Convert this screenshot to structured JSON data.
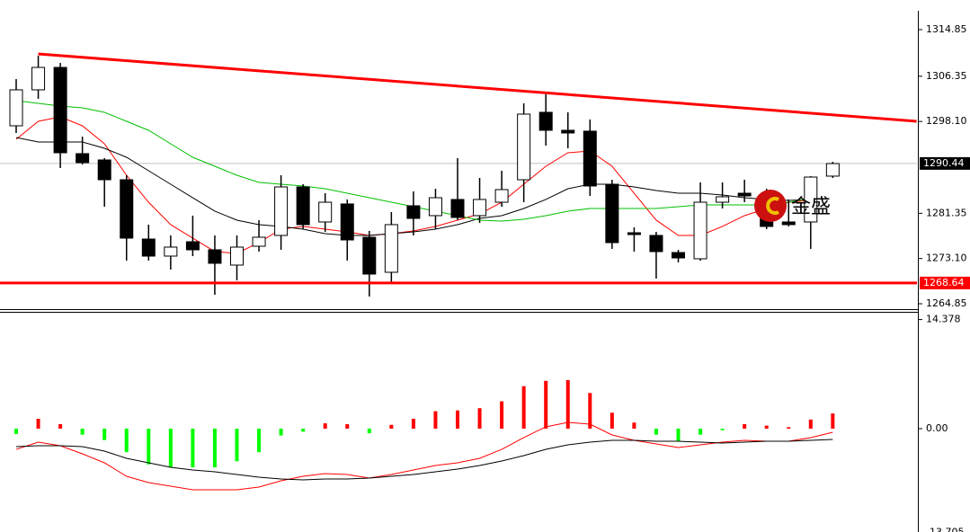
{
  "chart_data": [
    {
      "type": "candlestick",
      "open": [
        1297.31,
        1303.87,
        1307.96,
        1292.23,
        1291.08,
        1287.47,
        1276.65,
        1273.54,
        1276.16,
        1274.69,
        1271.9,
        1275.34,
        1277.31,
        1286.16,
        1279.77,
        1283.05,
        1276.98,
        1270.59,
        1282.72,
        1280.92,
        1283.87,
        1280.92,
        1283.37,
        1287.47,
        1299.77,
        1296.49,
        1296.33,
        1286.65,
        1277.8,
        1277.31,
        1274.19,
        1273.05,
        1283.37,
        1285.01,
        1283.37,
        1279.77,
        1279.77,
        1288.13
      ],
      "high": [
        1305.83,
        1310.1,
        1308.78,
        1295.34,
        1291.41,
        1288.29,
        1279.28,
        1277.31,
        1280.92,
        1277.31,
        1277.31,
        1280.1,
        1288.29,
        1286.65,
        1285.01,
        1283.87,
        1278.13,
        1281.57,
        1285.34,
        1285.83,
        1291.41,
        1287.8,
        1289.11,
        1301.41,
        1303.05,
        1299.77,
        1298.46,
        1287.47,
        1278.78,
        1277.96,
        1274.69,
        1286.98,
        1286.98,
        1287.47,
        1285.83,
        1283.87,
        1288.13,
        1290.75
      ],
      "low": [
        1296.0,
        1302.23,
        1289.6,
        1290.26,
        1282.55,
        1272.72,
        1272.72,
        1271.08,
        1273.54,
        1266.49,
        1269.11,
        1274.36,
        1274.69,
        1278.46,
        1277.96,
        1272.72,
        1266.16,
        1268.78,
        1277.31,
        1278.46,
        1280.1,
        1279.6,
        1282.55,
        1283.37,
        1293.7,
        1293.21,
        1284.52,
        1274.85,
        1274.36,
        1269.44,
        1272.39,
        1272.72,
        1282.23,
        1283.37,
        1278.46,
        1278.95,
        1274.85,
        1287.8
      ],
      "close": [
        1303.87,
        1307.96,
        1292.39,
        1290.59,
        1287.47,
        1276.82,
        1273.54,
        1275.18,
        1274.69,
        1272.23,
        1275.18,
        1276.98,
        1286.16,
        1279.28,
        1283.37,
        1276.49,
        1270.26,
        1279.28,
        1280.42,
        1284.19,
        1280.59,
        1283.87,
        1285.67,
        1299.44,
        1296.49,
        1296.0,
        1286.33,
        1276.0,
        1277.47,
        1274.36,
        1273.21,
        1283.37,
        1284.36,
        1284.52,
        1278.95,
        1279.28,
        1287.96,
        1290.42
      ],
      "up_color": "#ffffff",
      "down_color": "#000000",
      "ylim": [
        1264.03,
        1318.29
      ],
      "yticks": [
        1314.85,
        1306.35,
        {
          "value": 1298.1,
          "label": "1298.10"
        },
        1281.35,
        {
          "value": 1273.1,
          "label": "1273.10"
        },
        1264.85
      ],
      "series": [
        {
          "color": "#ff0000",
          "values": [
            1294.85,
            1298.13,
            1298.95,
            1297.31,
            1294.03,
            1288.29,
            1283.37,
            1279.28,
            1276.82,
            1274.36,
            1274.03,
            1276.0,
            1278.46,
            1278.95,
            1278.46,
            1277.96,
            1277.31,
            1277.64,
            1278.13,
            1278.95,
            1280.1,
            1281.24,
            1283.37,
            1286.65,
            1289.93,
            1292.39,
            1292.72,
            1289.93,
            1285.01,
            1280.1,
            1277.31,
            1277.31,
            1278.95,
            1280.92,
            1282.23,
            1283.37,
            1283.7,
            null
          ]
        },
        {
          "color": "#000000",
          "values": [
            1295.18,
            1294.36,
            1294.36,
            1294.36,
            1293.21,
            1291.57,
            1289.11,
            1286.65,
            1284.19,
            1281.74,
            1280.1,
            1279.28,
            1278.95,
            1278.46,
            1277.64,
            1277.31,
            1277.31,
            1277.64,
            1277.96,
            1278.46,
            1279.28,
            1280.42,
            1280.92,
            1282.23,
            1283.87,
            1285.83,
            1286.65,
            1286.65,
            1286.16,
            1285.51,
            1285.01,
            1285.01,
            1284.69,
            1284.19,
            1283.87,
            1283.7,
            1283.87,
            null
          ]
        },
        {
          "color": "#00c000",
          "values": [
            1301.9,
            1301.41,
            1300.92,
            1300.59,
            1299.77,
            1298.13,
            1296.49,
            1294.03,
            1291.57,
            1289.93,
            1288.29,
            1286.98,
            1286.65,
            1286.33,
            1285.83,
            1285.01,
            1284.19,
            1283.37,
            1282.55,
            1281.74,
            1280.92,
            1280.1,
            1279.93,
            1280.26,
            1280.92,
            1281.74,
            1282.23,
            1282.23,
            1282.23,
            1282.23,
            1282.55,
            1282.88,
            1282.88,
            1282.88,
            1282.88,
            1283.37,
            1284.03,
            null
          ]
        }
      ],
      "trendlines": [
        {
          "color": "#ff0000",
          "x": [
            1,
            40.8
          ],
          "y": [
            1310.42,
            1298.13
          ]
        }
      ],
      "hlines": [
        {
          "value": 1290.44,
          "color": "#c0c0c0",
          "label_color": "#000000"
        },
        {
          "value": 1268.64,
          "color": "#ff0000",
          "label_color": "#ff0000"
        }
      ],
      "watermark": "金盛"
    },
    {
      "type": "macd",
      "values": [
        -0.7,
        1.3,
        0.6,
        -0.8,
        -1.5,
        -3.1,
        -4.7,
        -5.1,
        -5.1,
        -5.1,
        -4.3,
        -3.1,
        -0.9,
        -0.4,
        0.7,
        0.6,
        -0.6,
        0.5,
        1.3,
        2.3,
        2.4,
        2.7,
        3.6,
        5.6,
        6.3,
        6.4,
        4.7,
        2.1,
        0.8,
        -0.8,
        -1.7,
        -0.8,
        -0.2,
        0.6,
        0.4,
        0.2,
        1.2,
        2.0
      ],
      "colors": [
        "#00ff00",
        "#ff0000",
        "#ff0000",
        "#00ff00",
        "#00ff00",
        "#00ff00",
        "#00ff00",
        "#00ff00",
        "#00ff00",
        "#00ff00",
        "#00ff00",
        "#00ff00",
        "#00ff00",
        "#00ff00",
        "#ff0000",
        "#ff0000",
        "#00ff00",
        "#ff0000",
        "#ff0000",
        "#ff0000",
        "#ff0000",
        "#ff0000",
        "#ff0000",
        "#ff0000",
        "#ff0000",
        "#ff0000",
        "#ff0000",
        "#ff0000",
        "#ff0000",
        "#00ff00",
        "#00ff00",
        "#00ff00",
        "#00ff00",
        "#ff0000",
        "#ff0000",
        "#ff0000",
        "#ff0000",
        "#ff0000"
      ],
      "series": [
        {
          "color": "#ff0000",
          "values": [
            -2.73,
            -1.78,
            -2.25,
            -3.32,
            -4.5,
            -6.28,
            -7.11,
            -7.58,
            -8.06,
            -8.06,
            -8.06,
            -7.7,
            -6.87,
            -6.28,
            -5.92,
            -6.04,
            -6.52,
            -6.04,
            -5.45,
            -4.86,
            -4.5,
            -3.91,
            -2.73,
            -1.18,
            0.24,
            0.83,
            0.59,
            -0.83,
            -1.54,
            -2.01,
            -2.49,
            -2.13,
            -1.78,
            -1.54,
            -1.66,
            -1.66,
            -1.18,
            -0.47
          ]
        },
        {
          "color": "#000000",
          "values": [
            -2.37,
            -2.25,
            -2.25,
            -2.37,
            -2.96,
            -3.91,
            -4.5,
            -5.09,
            -5.45,
            -5.69,
            -6.04,
            -6.4,
            -6.64,
            -6.75,
            -6.64,
            -6.64,
            -6.52,
            -6.28,
            -6.04,
            -5.69,
            -5.33,
            -4.86,
            -4.27,
            -3.55,
            -2.73,
            -2.13,
            -1.78,
            -1.54,
            -1.54,
            -1.66,
            -1.66,
            -1.78,
            -1.9,
            -1.78,
            -1.66,
            -1.66,
            -1.54,
            -1.42
          ]
        }
      ],
      "ylim": [
        -13.705,
        14.378
      ],
      "yticks": [
        14.378,
        {
          "value": 0,
          "label": "0.00"
        },
        -13.705
      ]
    }
  ]
}
